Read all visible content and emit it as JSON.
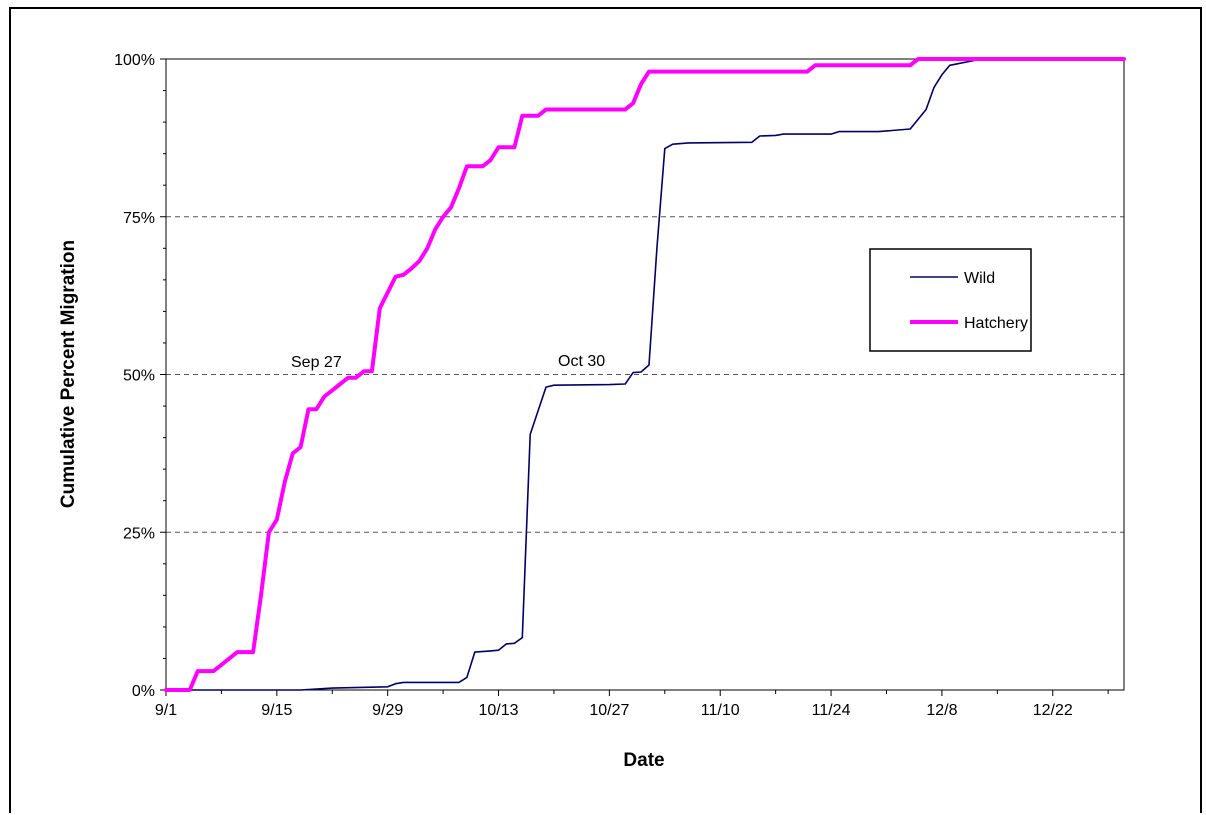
{
  "chart_data": {
    "type": "line",
    "title": "",
    "xlabel": "Date",
    "ylabel": "Cumulative Percent Migration",
    "x_tick_labels": [
      "9/1",
      "9/15",
      "9/29",
      "10/13",
      "10/27",
      "11/10",
      "11/24",
      "12/8",
      "12/22"
    ],
    "y_tick_labels": [
      "0%",
      "25%",
      "50%",
      "75%",
      "100%"
    ],
    "xlim": [
      "9/1",
      "12/31"
    ],
    "ylim": [
      0,
      100
    ],
    "grid": "horizontal dashed at 25%, 50%, 75%",
    "legend_position": "right",
    "series": [
      {
        "name": "Wild",
        "color": "#000066",
        "points": [
          [
            "9/1",
            0
          ],
          [
            "9/18",
            0
          ],
          [
            "9/22",
            0.3
          ],
          [
            "9/29",
            0.5
          ],
          [
            "9/30",
            1
          ],
          [
            "10/1",
            1.2
          ],
          [
            "10/8",
            1.2
          ],
          [
            "10/9",
            2
          ],
          [
            "10/10",
            6
          ],
          [
            "10/12",
            6.2
          ],
          [
            "10/13",
            6.3
          ],
          [
            "10/14",
            7.3
          ],
          [
            "10/15",
            7.4
          ],
          [
            "10/16",
            8.3
          ],
          [
            "10/17",
            40.5
          ],
          [
            "10/19",
            48
          ],
          [
            "10/20",
            48.3
          ],
          [
            "10/27",
            48.4
          ],
          [
            "10/29",
            48.5
          ],
          [
            "10/30",
            50.3
          ],
          [
            "10/31",
            50.4
          ],
          [
            "11/1",
            51.5
          ],
          [
            "11/2",
            70
          ],
          [
            "11/3",
            85.8
          ],
          [
            "11/4",
            86.5
          ],
          [
            "11/6",
            86.7
          ],
          [
            "11/14",
            86.8
          ],
          [
            "11/15",
            87.8
          ],
          [
            "11/17",
            87.9
          ],
          [
            "11/18",
            88.1
          ],
          [
            "11/24",
            88.1
          ],
          [
            "11/25",
            88.5
          ],
          [
            "11/30",
            88.5
          ],
          [
            "12/4",
            88.9
          ],
          [
            "12/6",
            92
          ],
          [
            "12/7",
            95.5
          ],
          [
            "12/8",
            97.5
          ],
          [
            "12/9",
            99
          ],
          [
            "12/13",
            100
          ],
          [
            "12/31",
            100
          ]
        ]
      },
      {
        "name": "Hatchery",
        "color": "#ff00ff",
        "points": [
          [
            "9/1",
            0
          ],
          [
            "9/4",
            0
          ],
          [
            "9/5",
            3
          ],
          [
            "9/7",
            3
          ],
          [
            "9/8",
            4
          ],
          [
            "9/10",
            6
          ],
          [
            "9/12",
            6
          ],
          [
            "9/13",
            15
          ],
          [
            "9/14",
            25
          ],
          [
            "9/15",
            27
          ],
          [
            "9/16",
            33
          ],
          [
            "9/17",
            37.5
          ],
          [
            "9/18",
            38.5
          ],
          [
            "9/19",
            44.5
          ],
          [
            "9/20",
            44.5
          ],
          [
            "9/21",
            46.5
          ],
          [
            "9/22",
            47.5
          ],
          [
            "9/23",
            48.5
          ],
          [
            "9/24",
            49.5
          ],
          [
            "9/25",
            49.5
          ],
          [
            "9/26",
            50.5
          ],
          [
            "9/27",
            50.5
          ],
          [
            "9/28",
            60.5
          ],
          [
            "9/29",
            63
          ],
          [
            "9/30",
            65.5
          ],
          [
            "10/1",
            65.8
          ],
          [
            "10/2",
            66.8
          ],
          [
            "10/3",
            68
          ],
          [
            "10/4",
            70
          ],
          [
            "10/5",
            73
          ],
          [
            "10/6",
            75
          ],
          [
            "10/7",
            76.5
          ],
          [
            "10/8",
            79.5
          ],
          [
            "10/9",
            83
          ],
          [
            "10/11",
            83
          ],
          [
            "10/12",
            84
          ],
          [
            "10/13",
            86
          ],
          [
            "10/15",
            86
          ],
          [
            "10/16",
            91
          ],
          [
            "10/18",
            91
          ],
          [
            "10/19",
            92
          ],
          [
            "10/29",
            92
          ],
          [
            "10/30",
            93
          ],
          [
            "10/31",
            96
          ],
          [
            "11/1",
            98
          ],
          [
            "11/21",
            98
          ],
          [
            "11/22",
            99
          ],
          [
            "12/4",
            99
          ],
          [
            "12/5",
            100
          ],
          [
            "12/31",
            100
          ]
        ]
      }
    ],
    "annotations": [
      {
        "text": "Sep 27",
        "x": "9/27",
        "y": 50
      },
      {
        "text": "Oct 30",
        "x": "10/30",
        "y": 50
      }
    ]
  }
}
